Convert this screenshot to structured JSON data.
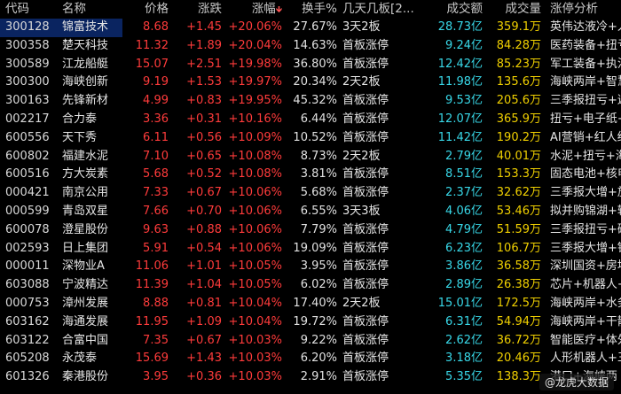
{
  "headers": {
    "code": "代码",
    "name": "名称",
    "price": "价格",
    "change": "涨跌",
    "pct": "涨幅",
    "turnover": "换手%",
    "ban": "几天几板[2...",
    "amount": "成交额",
    "volume": "成交量",
    "analysis": "涨停分析"
  },
  "sort_indicator": "down-arrow-icon",
  "colors": {
    "up": "#ff3b3b",
    "amount": "#38d8e8",
    "volume": "#f0d000",
    "selected_bg": "#0a2460"
  },
  "rows": [
    {
      "code": "300128",
      "name": "锦富技术",
      "price": "8.68",
      "change": "+1.45",
      "pct": "+20.06%",
      "turnover": "27.67%",
      "ban": "3天2板",
      "amount": "28.73亿",
      "volume": "359.1万",
      "analysis": "英伟达液冷+人"
    },
    {
      "code": "300358",
      "name": "楚天科技",
      "price": "11.32",
      "change": "+1.89",
      "pct": "+20.04%",
      "turnover": "14.63%",
      "ban": "首板涨停",
      "amount": "9.24亿",
      "volume": "84.28万",
      "analysis": "医药装备+扭亏"
    },
    {
      "code": "300589",
      "name": "江龙船艇",
      "price": "15.07",
      "change": "+2.51",
      "pct": "+19.98%",
      "turnover": "36.80%",
      "ban": "首板涨停",
      "amount": "12.42亿",
      "volume": "85.23万",
      "analysis": "军工装备+执法"
    },
    {
      "code": "300300",
      "name": "海峡创新",
      "price": "9.19",
      "change": "+1.53",
      "pct": "+19.97%",
      "turnover": "20.34%",
      "ban": "2天2板",
      "amount": "11.98亿",
      "volume": "135.6万",
      "analysis": "海峡两岸+智慧"
    },
    {
      "code": "300163",
      "name": "先锋新材",
      "price": "4.99",
      "change": "+0.83",
      "pct": "+19.95%",
      "turnover": "45.32%",
      "ban": "首板涨停",
      "amount": "9.53亿",
      "volume": "205.6万",
      "analysis": "三季报扭亏+遮"
    },
    {
      "code": "002217",
      "name": "合力泰",
      "price": "3.36",
      "change": "+0.31",
      "pct": "+10.16%",
      "turnover": "6.44%",
      "ban": "首板涨停",
      "amount": "12.07亿",
      "volume": "365.9万",
      "analysis": "扭亏+电子纸+"
    },
    {
      "code": "600556",
      "name": "天下秀",
      "price": "6.11",
      "change": "+0.56",
      "pct": "+10.09%",
      "turnover": "10.52%",
      "ban": "首板涨停",
      "amount": "11.42亿",
      "volume": "190.2万",
      "analysis": "AI营销+红人经"
    },
    {
      "code": "600802",
      "name": "福建水泥",
      "price": "7.10",
      "change": "+0.65",
      "pct": "+10.08%",
      "turnover": "8.73%",
      "ban": "2天2板",
      "amount": "2.79亿",
      "volume": "40.01万",
      "analysis": "水泥+扭亏+海"
    },
    {
      "code": "600516",
      "name": "方大炭素",
      "price": "5.68",
      "change": "+0.52",
      "pct": "+10.08%",
      "turnover": "3.81%",
      "ban": "首板涨停",
      "amount": "8.51亿",
      "volume": "153.3万",
      "analysis": "固态电池+核电"
    },
    {
      "code": "000421",
      "name": "南京公用",
      "price": "7.33",
      "change": "+0.67",
      "pct": "+10.06%",
      "turnover": "5.68%",
      "ban": "首板涨停",
      "amount": "2.37亿",
      "volume": "32.62万",
      "analysis": "三季报大增+旅"
    },
    {
      "code": "000599",
      "name": "青岛双星",
      "price": "7.66",
      "change": "+0.70",
      "pct": "+10.06%",
      "turnover": "6.55%",
      "ban": "3天3板",
      "amount": "4.06亿",
      "volume": "53.46万",
      "analysis": "拟并购锦湖+轮"
    },
    {
      "code": "600078",
      "name": "澄星股份",
      "price": "9.63",
      "change": "+0.88",
      "pct": "+10.06%",
      "turnover": "7.79%",
      "ban": "首板涨停",
      "amount": "4.79亿",
      "volume": "51.59万",
      "analysis": "三季报扭亏+磷"
    },
    {
      "code": "002593",
      "name": "日上集团",
      "price": "5.91",
      "change": "+0.54",
      "pct": "+10.06%",
      "turnover": "19.09%",
      "ban": "首板涨停",
      "amount": "6.23亿",
      "volume": "106.7万",
      "analysis": "三季报大增+钢"
    },
    {
      "code": "000011",
      "name": "深物业A",
      "price": "11.06",
      "change": "+1.01",
      "pct": "+10.05%",
      "turnover": "3.95%",
      "ban": "首板涨停",
      "amount": "3.86亿",
      "volume": "36.58万",
      "analysis": "深圳国资+房地"
    },
    {
      "code": "603088",
      "name": "宁波精达",
      "price": "11.39",
      "change": "+1.04",
      "pct": "+10.05%",
      "turnover": "6.02%",
      "ban": "首板涨停",
      "amount": "2.89亿",
      "volume": "26.38万",
      "analysis": "芯片+机器人+"
    },
    {
      "code": "000753",
      "name": "漳州发展",
      "price": "8.88",
      "change": "+0.81",
      "pct": "+10.04%",
      "turnover": "17.40%",
      "ban": "2天2板",
      "amount": "15.01亿",
      "volume": "172.5万",
      "analysis": "海峡两岸+水务"
    },
    {
      "code": "603162",
      "name": "海通发展",
      "price": "11.95",
      "change": "+1.09",
      "pct": "+10.04%",
      "turnover": "19.72%",
      "ban": "首板涨停",
      "amount": "6.31亿",
      "volume": "54.94万",
      "analysis": "海峡两岸+干散"
    },
    {
      "code": "603122",
      "name": "合富中国",
      "price": "7.35",
      "change": "+0.67",
      "pct": "+10.03%",
      "turnover": "9.22%",
      "ban": "首板涨停",
      "amount": "2.62亿",
      "volume": "36.72万",
      "analysis": "智能医疗+体外"
    },
    {
      "code": "605208",
      "name": "永茂泰",
      "price": "15.69",
      "change": "+1.43",
      "pct": "+10.03%",
      "turnover": "6.20%",
      "ban": "首板涨停",
      "amount": "3.18亿",
      "volume": "20.46万",
      "analysis": "人形机器人+三"
    },
    {
      "code": "601326",
      "name": "秦港股份",
      "price": "3.95",
      "change": "+0.36",
      "pct": "+10.03%",
      "turnover": "2.91%",
      "ban": "首板涨停",
      "amount": "5.35亿",
      "volume": "138.3万",
      "analysis": "港口+海峡两"
    }
  ],
  "watermark": "@龙虎大数据"
}
